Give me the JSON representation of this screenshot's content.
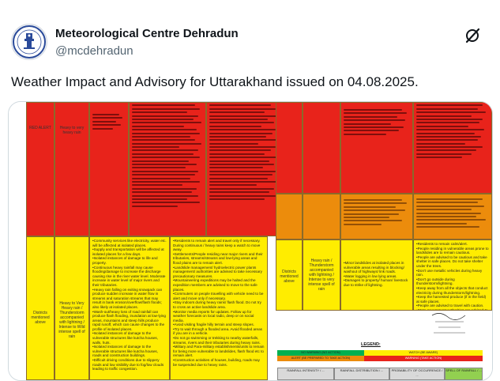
{
  "tweet": {
    "author_name": "Meteorological Centre Dehradun",
    "handle": "@mcdehradun",
    "text": "Weather Impact and Advisory for Uttarakhand issued on 04.08.2025.",
    "grok_icon": "grok-slash-icon",
    "avatar_icon": "imd-emblem-icon"
  },
  "image": {
    "colors": {
      "red": "#e8231b",
      "orange": "#ec8c0c",
      "yellow": "#ffed00"
    },
    "left_table": {
      "red_row": {
        "col1": "RED ALERT",
        "col2": "Heavy to very heavy rain"
      },
      "yellow_row": {
        "col1": "Districts mentioned above",
        "col2": "Heavy to Very Heavy rain / Thunderstorm accompanied with lightning / Intense to Wild intense spell of rain",
        "impacts": [
          "Community services like electricity, water etc. will be affected at isolated places.",
          "Supply and transportation will be affected at isolated places for a few days.",
          "Isolated instances of damage to life and property.",
          "Continuous heavy rainfall may cause flooding/damage to increase the discharge causing rise in the river water level. Moderate increase in water level of major rivers and their tributaries.",
          "Heavy rain falling on exiting snowpack can produce sudden increase in water flow in streams and saturation streams that may result in bank erosion/overflow/flash floods; also likely at isolated places.",
          "Wash-out/heavy loss of road rainfall can produce flash flooding, inundation at low-lying areas, mountains and steep hills produce rapid runoff, which can cause changes to the profile of isolated places.",
          "Isolated instances of damage to the vulnerable structures like kutcha houses, walls, huts.",
          "Isolated instances of damage to the vulnerable structures like kutcha houses, roads and construction buildings.",
          "Difficult driving conditions due to slippery roads and low visibility due to fog/low clouds leading to traffic congestion."
        ],
        "actions": [
          "Residents to remain alert and travel only if necessary. During continuous / heavy rains keep a watch to move away.",
          "Settlements/People residing near major rivers and their tributaries, streams/streams and low-lying areas and flood plains are to remain alert.",
          "Landslide management/ hydroelectric power plants management/ authorities are advised to take necessary precautionary measures.",
          "Mountaineering expeditions may be halted and the expedition members are advised to move to the safe places.",
          "Commuters on people travelling with vehicle need to be alert and move only if necessary.",
          "Stay indoors during heavy rains/ flash flood. Do not try to cross an active landslide area.",
          "Monitor media reports for updates. Follow up for weather forecasts on local radio, deep or on social media.",
          "Avoid visiting fragile hilly terrain and steep slopes.",
          "Try to wait through a flooded area. Avoid flooded areas if you are in a vehicle.",
          "Do not go swimming or trekking to nearby waterfalls, streams, rivers and their tributaries during heavy rains.",
          "Military and Para-military establishments/units to remain for being more vulnerable to landslides, flash flood etc to remain alert.",
          "Construction activities of houses, building, roads may be suspended due to heavy rains."
        ]
      }
    },
    "right_table": {
      "orange_row": {
        "col2": "Heavy rain / Thunderstorm accompanied with lightning / Intense to very intense spell of rain",
        "impacts": [
          "Minor landslides at isolated places in vulnerable areas resulting in blocking/ washout of highways/ link roads.",
          "Water logging in low lying areas.",
          "Damages to property/ human/ livestock due to strike of lightning."
        ],
        "actions": [
          "Residents to remain calm/alert.",
          "People residing in vulnerable areas prone to landslides are to remain cautious.",
          "People are advised to be cautious and take shelter in safe places. Do not take shelter under the trees.",
          "Don't use metallic vehicles during heavy rain.",
          "Don't go outside during thunderstorm/lightning.",
          "Keep away from all the objects that conduct electricity during thunderstorm/lightning.",
          "Keep the harvested produce (if in the field) at safe places.",
          "People are advised to travel with caution.",
          "State government authorities are advised to take necessary precautionary measures."
        ]
      },
      "yellow_row": {
        "col1": "Districts mentioned above"
      }
    },
    "legend": {
      "title": "LEGEND:",
      "items": [
        "NO WARNING (NO ACTION)",
        "WATCH (BE AWARE)",
        "ALERT (BE PREPARED TO TAKE ACTION)",
        "WARNING (TAKE ACTION)"
      ],
      "columns": [
        "RAINFALL INTENSITY / ...",
        "RAINFALL DISTRIBUTION / ...",
        "PROBABILITY OF OCCURRENCE / ...",
        "SPELL OF RAINFALL / ..."
      ]
    }
  }
}
